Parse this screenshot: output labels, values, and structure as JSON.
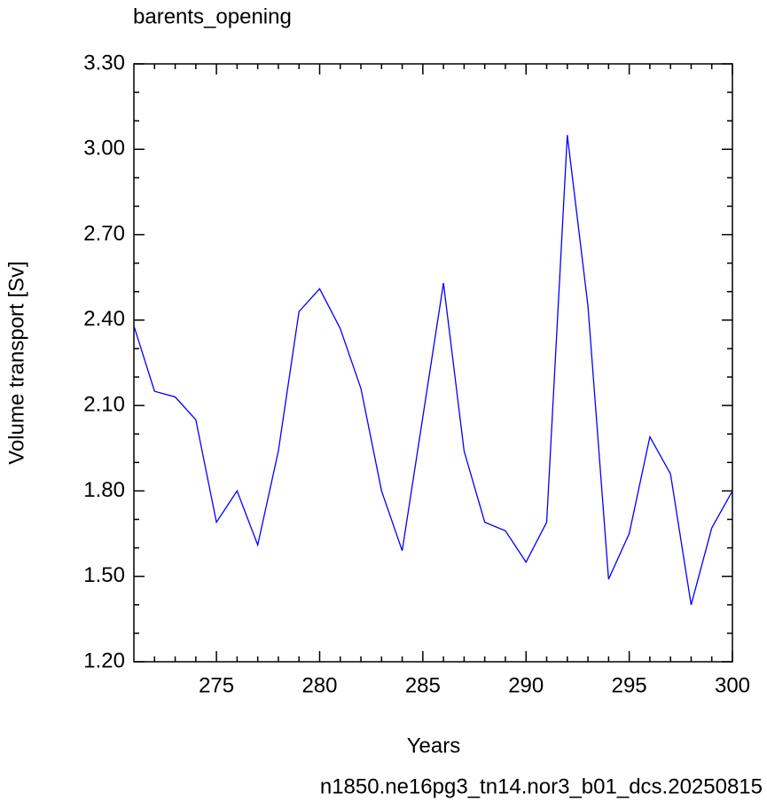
{
  "chart_data": {
    "type": "line",
    "title": "barents_opening",
    "x_label": "Years",
    "y_label": "Volume transport [Sv]",
    "footnote": "n1850.ne16pg3_tn14.nor3_b01_dcs.20250815",
    "footnote_color": "#0000ff",
    "color": "#0000ff",
    "x": [
      271,
      272,
      273,
      274,
      275,
      276,
      277,
      278,
      279,
      280,
      281,
      282,
      283,
      284,
      285,
      286,
      287,
      288,
      289,
      290,
      291,
      292,
      293,
      294,
      295,
      296,
      297,
      298,
      299,
      300
    ],
    "values": [
      2.38,
      2.15,
      2.13,
      2.05,
      1.69,
      1.8,
      1.61,
      1.94,
      2.43,
      2.51,
      2.37,
      2.16,
      1.8,
      1.59,
      2.06,
      2.53,
      1.94,
      1.69,
      1.66,
      1.55,
      1.69,
      3.05,
      2.45,
      1.49,
      1.65,
      1.99,
      1.86,
      1.4,
      1.67,
      1.8
    ],
    "xlim": [
      271,
      300
    ],
    "ylim": [
      1.2,
      3.3
    ],
    "xticks": [
      275,
      280,
      285,
      290,
      295,
      300
    ],
    "xminorticks": [
      272,
      273,
      274,
      276,
      277,
      278,
      279,
      281,
      282,
      283,
      284,
      286,
      287,
      288,
      289,
      291,
      292,
      293,
      294,
      296,
      297,
      298,
      299
    ],
    "yticks": [
      {
        "value": 1.2,
        "label": "1.20"
      },
      {
        "value": 1.5,
        "label": "1.50"
      },
      {
        "value": 1.8,
        "label": "1.80"
      },
      {
        "value": 2.1,
        "label": "2.10"
      },
      {
        "value": 2.4,
        "label": "2.40"
      },
      {
        "value": 2.7,
        "label": "2.70"
      },
      {
        "value": 3.0,
        "label": "3.00"
      },
      {
        "value": 3.3,
        "label": "3.30"
      }
    ],
    "yminorticks": [
      1.3,
      1.4,
      1.6,
      1.7,
      1.9,
      2.0,
      2.2,
      2.3,
      2.5,
      2.6,
      2.8,
      2.9,
      3.1,
      3.2
    ]
  }
}
